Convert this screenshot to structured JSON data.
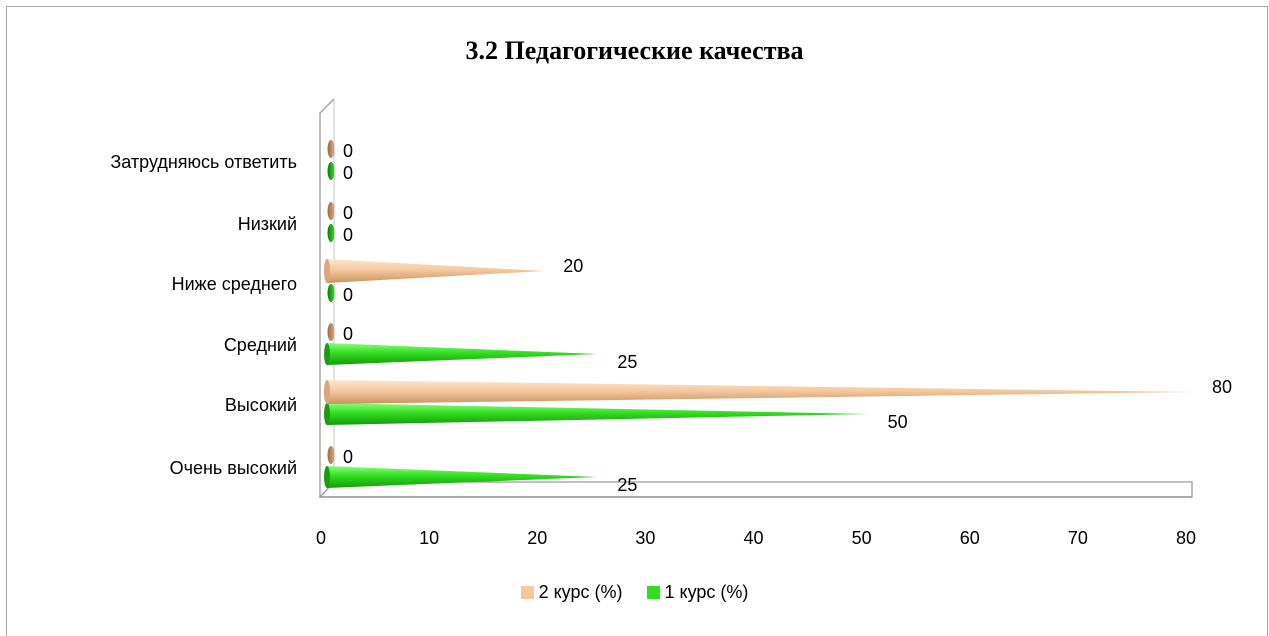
{
  "chart_data": {
    "type": "bar",
    "orientation": "horizontal",
    "title": "3.2 Педагогические качества",
    "categories": [
      "Очень высокий",
      "Высокий",
      "Средний",
      "Ниже среднего",
      "Низкий",
      "Затрудняюсь ответить"
    ],
    "series": [
      {
        "name": "1 курс (%)",
        "values": [
          25,
          50,
          25,
          0,
          0,
          0
        ],
        "color": "#33dd22"
      },
      {
        "name": "2 курс (%)",
        "values": [
          0,
          80,
          0,
          20,
          0,
          0
        ],
        "color": "#f5c9a0"
      }
    ],
    "xlim": [
      0,
      80
    ],
    "x_ticks": [
      0,
      10,
      20,
      30,
      40,
      50,
      60,
      70,
      80
    ],
    "xlabel": "",
    "ylabel": "",
    "legend_position": "bottom",
    "grid": false
  }
}
